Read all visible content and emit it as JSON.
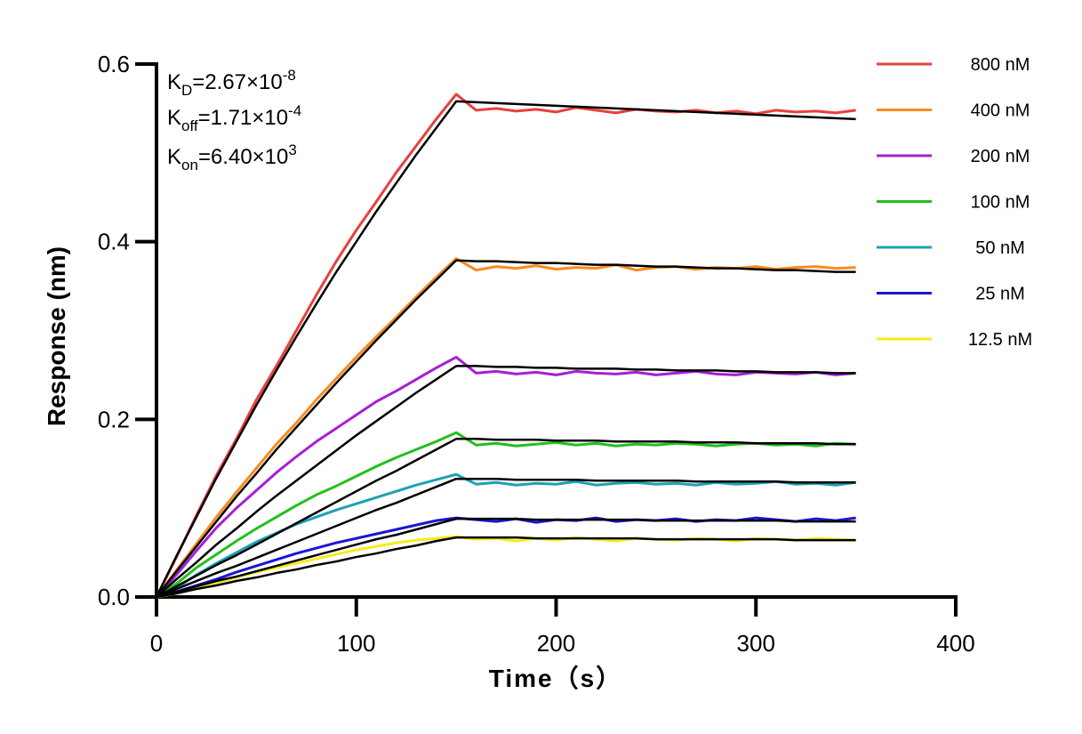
{
  "chart_data": {
    "type": "line",
    "xlabel": "Time（s）",
    "ylabel": "Response (nm)",
    "annotations": [
      {
        "symbol": "K",
        "subscript": "D",
        "text": "=2.67×10",
        "superscript": "-8"
      },
      {
        "symbol": "K",
        "subscript": "off",
        "text": "=1.71×10",
        "superscript": "-4"
      },
      {
        "symbol": "K",
        "subscript": "on",
        "text": "=6.40×10",
        "superscript": "3"
      }
    ],
    "xlim": [
      0,
      400
    ],
    "xticks": [
      0,
      100,
      200,
      300,
      400
    ],
    "ylim": [
      0,
      0.6
    ],
    "yticks": [
      {
        "value": 0,
        "label": "0.0"
      },
      0.2,
      0.4,
      0.6
    ],
    "legend": "right",
    "x": [
      0,
      10,
      20,
      30,
      40,
      50,
      60,
      70,
      80,
      90,
      100,
      110,
      120,
      130,
      140,
      150,
      160,
      170,
      180,
      190,
      200,
      210,
      220,
      230,
      240,
      250,
      260,
      270,
      280,
      290,
      300,
      310,
      320,
      330,
      340,
      350
    ],
    "series": [
      {
        "name": "800 nM",
        "color": "#e8403c",
        "values": [
          0,
          0.045,
          0.092,
          0.137,
          0.178,
          0.222,
          0.26,
          0.3,
          0.34,
          0.378,
          0.413,
          0.445,
          0.478,
          0.508,
          0.538,
          0.566,
          0.548,
          0.55,
          0.547,
          0.549,
          0.546,
          0.551,
          0.548,
          0.545,
          0.549,
          0.547,
          0.546,
          0.548,
          0.545,
          0.547,
          0.544,
          0.548,
          0.546,
          0.547,
          0.545,
          0.548
        ]
      },
      {
        "name": "400 nM",
        "color": "#f98b1e",
        "values": [
          0,
          0.03,
          0.06,
          0.09,
          0.118,
          0.145,
          0.172,
          0.196,
          0.222,
          0.246,
          0.27,
          0.293,
          0.315,
          0.338,
          0.36,
          0.381,
          0.368,
          0.372,
          0.37,
          0.373,
          0.369,
          0.371,
          0.37,
          0.374,
          0.368,
          0.371,
          0.372,
          0.369,
          0.371,
          0.37,
          0.372,
          0.369,
          0.371,
          0.372,
          0.37,
          0.371
        ]
      },
      {
        "name": "200 nM",
        "color": "#a51fd6",
        "values": [
          0,
          0.025,
          0.052,
          0.078,
          0.1,
          0.12,
          0.14,
          0.158,
          0.175,
          0.19,
          0.205,
          0.22,
          0.232,
          0.245,
          0.258,
          0.27,
          0.252,
          0.254,
          0.251,
          0.253,
          0.25,
          0.254,
          0.252,
          0.251,
          0.253,
          0.25,
          0.252,
          0.254,
          0.251,
          0.25,
          0.253,
          0.252,
          0.251,
          0.253,
          0.25,
          0.252
        ]
      },
      {
        "name": "100 nM",
        "color": "#22c01c",
        "values": [
          0,
          0.015,
          0.033,
          0.048,
          0.063,
          0.077,
          0.09,
          0.103,
          0.115,
          0.125,
          0.136,
          0.147,
          0.157,
          0.166,
          0.175,
          0.185,
          0.171,
          0.173,
          0.17,
          0.172,
          0.174,
          0.171,
          0.173,
          0.17,
          0.172,
          0.171,
          0.173,
          0.172,
          0.17,
          0.172,
          0.173,
          0.171,
          0.172,
          0.17,
          0.173,
          0.172
        ]
      },
      {
        "name": "50 nM",
        "color": "#1ba2b5",
        "values": [
          0,
          0.01,
          0.025,
          0.038,
          0.05,
          0.062,
          0.072,
          0.082,
          0.09,
          0.098,
          0.105,
          0.112,
          0.119,
          0.126,
          0.132,
          0.138,
          0.127,
          0.129,
          0.126,
          0.128,
          0.127,
          0.13,
          0.126,
          0.128,
          0.129,
          0.127,
          0.128,
          0.126,
          0.129,
          0.127,
          0.128,
          0.13,
          0.127,
          0.128,
          0.126,
          0.129
        ]
      },
      {
        "name": "25 nM",
        "color": "#1a16d4",
        "values": [
          0,
          0.006,
          0.013,
          0.02,
          0.028,
          0.035,
          0.042,
          0.049,
          0.055,
          0.061,
          0.066,
          0.071,
          0.076,
          0.081,
          0.086,
          0.089,
          0.087,
          0.085,
          0.088,
          0.084,
          0.087,
          0.086,
          0.089,
          0.085,
          0.087,
          0.086,
          0.088,
          0.085,
          0.087,
          0.086,
          0.089,
          0.087,
          0.085,
          0.088,
          0.086,
          0.089
        ]
      },
      {
        "name": "12.5 nM",
        "color": "#f5ec1a",
        "values": [
          0,
          0.004,
          0.01,
          0.016,
          0.022,
          0.028,
          0.033,
          0.038,
          0.043,
          0.048,
          0.053,
          0.057,
          0.061,
          0.064,
          0.066,
          0.068,
          0.065,
          0.066,
          0.063,
          0.066,
          0.064,
          0.067,
          0.065,
          0.063,
          0.066,
          0.065,
          0.064,
          0.066,
          0.065,
          0.063,
          0.066,
          0.065,
          0.064,
          0.066,
          0.065,
          0.064
        ]
      }
    ],
    "fits": [
      {
        "color": "#000000",
        "values": [
          0,
          0.046,
          0.09,
          0.134,
          0.175,
          0.216,
          0.255,
          0.293,
          0.33,
          0.366,
          0.4,
          0.434,
          0.466,
          0.498,
          0.528,
          0.558,
          0.557,
          0.556,
          0.555,
          0.554,
          0.553,
          0.552,
          0.551,
          0.55,
          0.549,
          0.548,
          0.547,
          0.546,
          0.545,
          0.544,
          0.543,
          0.542,
          0.541,
          0.54,
          0.539,
          0.538
        ]
      },
      {
        "color": "#000000",
        "values": [
          0,
          0.029,
          0.057,
          0.085,
          0.113,
          0.139,
          0.166,
          0.191,
          0.216,
          0.241,
          0.265,
          0.289,
          0.312,
          0.335,
          0.357,
          0.379,
          0.378,
          0.378,
          0.377,
          0.376,
          0.376,
          0.375,
          0.374,
          0.374,
          0.373,
          0.372,
          0.372,
          0.371,
          0.37,
          0.37,
          0.369,
          0.368,
          0.368,
          0.367,
          0.366,
          0.366
        ]
      },
      {
        "color": "#000000",
        "values": [
          0,
          0.02,
          0.039,
          0.059,
          0.077,
          0.096,
          0.114,
          0.131,
          0.148,
          0.165,
          0.182,
          0.198,
          0.214,
          0.23,
          0.245,
          0.26,
          0.26,
          0.259,
          0.259,
          0.258,
          0.258,
          0.257,
          0.257,
          0.257,
          0.256,
          0.256,
          0.255,
          0.255,
          0.255,
          0.254,
          0.254,
          0.253,
          0.253,
          0.253,
          0.252,
          0.252
        ]
      },
      {
        "color": "#000000",
        "values": [
          0,
          0.012,
          0.024,
          0.036,
          0.047,
          0.059,
          0.071,
          0.083,
          0.095,
          0.107,
          0.119,
          0.131,
          0.142,
          0.154,
          0.166,
          0.178,
          0.178,
          0.177,
          0.177,
          0.177,
          0.176,
          0.176,
          0.176,
          0.175,
          0.175,
          0.175,
          0.175,
          0.174,
          0.174,
          0.174,
          0.173,
          0.173,
          0.173,
          0.173,
          0.172,
          0.172
        ]
      },
      {
        "color": "#000000",
        "values": [
          0,
          0.009,
          0.018,
          0.027,
          0.035,
          0.044,
          0.053,
          0.062,
          0.071,
          0.08,
          0.089,
          0.098,
          0.106,
          0.115,
          0.124,
          0.133,
          0.133,
          0.133,
          0.132,
          0.132,
          0.132,
          0.132,
          0.131,
          0.131,
          0.131,
          0.131,
          0.131,
          0.13,
          0.13,
          0.13,
          0.13,
          0.13,
          0.129,
          0.129,
          0.129,
          0.129
        ]
      },
      {
        "color": "#000000",
        "values": [
          0,
          0.006,
          0.012,
          0.018,
          0.023,
          0.029,
          0.035,
          0.041,
          0.047,
          0.053,
          0.059,
          0.065,
          0.07,
          0.076,
          0.082,
          0.088,
          0.088,
          0.088,
          0.088,
          0.087,
          0.087,
          0.087,
          0.087,
          0.087,
          0.087,
          0.086,
          0.086,
          0.086,
          0.086,
          0.086,
          0.086,
          0.086,
          0.085,
          0.085,
          0.085,
          0.085
        ]
      },
      {
        "color": "#000000",
        "values": [
          0,
          0.004,
          0.009,
          0.013,
          0.018,
          0.022,
          0.027,
          0.031,
          0.036,
          0.04,
          0.045,
          0.049,
          0.054,
          0.058,
          0.063,
          0.067,
          0.067,
          0.067,
          0.067,
          0.066,
          0.066,
          0.066,
          0.066,
          0.066,
          0.066,
          0.065,
          0.065,
          0.065,
          0.065,
          0.065,
          0.065,
          0.065,
          0.064,
          0.064,
          0.064,
          0.064
        ]
      }
    ]
  }
}
